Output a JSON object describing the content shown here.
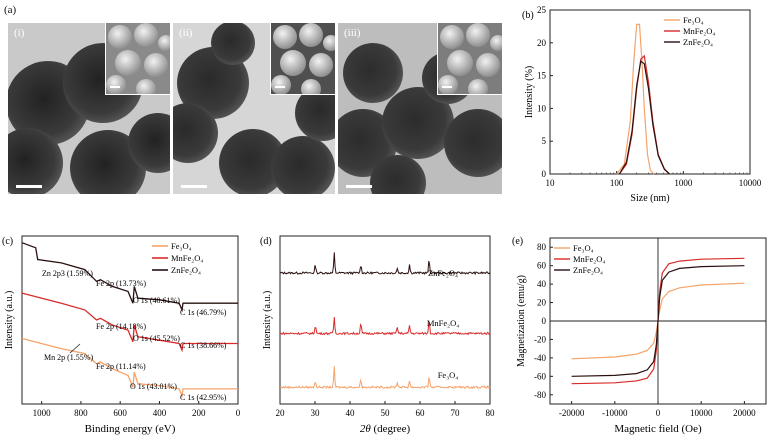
{
  "figure": {
    "panel_a_label": "(a)",
    "tem_panels": [
      {
        "label": "(i)",
        "bg": "#c9c9c9",
        "dark": "#222",
        "sem_bg": "#8a8a8a"
      },
      {
        "label": "(ii)",
        "bg": "#d6d6d6",
        "dark": "#2a2a2a",
        "sem_bg": "#4f4f4f"
      },
      {
        "label": "(iii)",
        "bg": "#bdbdbd",
        "dark": "#2c2c2c",
        "sem_bg": "#7d7d7d"
      }
    ]
  },
  "colors": {
    "fe3o4": "#f5a36a",
    "mnfe2o4": "#d92b2b",
    "znfe2o4": "#2a1010",
    "axis": "#222"
  },
  "chart_data": [
    {
      "id": "b",
      "panel_label": "(b)",
      "type": "line",
      "xscale": "log",
      "xlabel": "Size (nm)",
      "ylabel": "Intensity (%)",
      "xlim": [
        10,
        10000
      ],
      "ylim": [
        0,
        25
      ],
      "xticks": [
        10,
        100,
        1000,
        10000
      ],
      "xtick_labels": [
        "10",
        "100",
        "1000",
        "10000"
      ],
      "yticks": [
        0,
        5,
        10,
        15,
        20,
        25
      ],
      "legend": [
        "Fe₃O₄",
        "MnFe₂O₄",
        "ZnFe₂O₄"
      ],
      "series": [
        {
          "name": "Fe₃O₄",
          "x": [
            100,
            130,
            160,
            180,
            200,
            220,
            240,
            260,
            290,
            320,
            360
          ],
          "y": [
            0,
            1.5,
            8,
            17,
            22.8,
            22.8,
            17,
            10,
            3,
            0.6,
            0
          ]
        },
        {
          "name": "MnFe₂O₄",
          "x": [
            110,
            140,
            170,
            200,
            230,
            260,
            300,
            350,
            420,
            520,
            620
          ],
          "y": [
            0,
            1.5,
            6,
            13,
            17.5,
            18,
            14,
            8,
            3,
            0.8,
            0
          ]
        },
        {
          "name": "ZnFe₂O₄",
          "x": [
            110,
            140,
            170,
            200,
            230,
            260,
            300,
            350,
            420,
            520,
            620
          ],
          "y": [
            0,
            1.8,
            6.5,
            13.5,
            17.2,
            16.8,
            13,
            7.5,
            2.8,
            0.7,
            0
          ]
        }
      ]
    },
    {
      "id": "c",
      "panel_label": "(c)",
      "type": "line",
      "xlabel": "Binding energy (eV)",
      "ylabel": "Intensity (a.u.)",
      "xlim": [
        1100,
        0
      ],
      "xticks": [
        1000,
        800,
        600,
        400,
        200,
        0
      ],
      "legend": [
        "Fe₃O₄",
        "MnFe₂O₄",
        "ZnFe₂O₄"
      ],
      "annotations": [
        "Zn 2p3 (1.59%)",
        "Fe 2p (13.73%)",
        "O 1s (40.61%)",
        "C 1s (46.79%)",
        "Fe 2p (14.18%)",
        "O 1s (45.52%)",
        "C 1s (38.66%)",
        "Mn 2p (1.55%)",
        "Fe 2p (11.14%)",
        "O 1s (43.01%)",
        "C 1s (42.95%)"
      ],
      "series": [
        {
          "name": "ZnFe₂O₄",
          "x": [
            1100,
            1030,
            1020,
            900,
            780,
            720,
            700,
            640,
            560,
            535,
            528,
            510,
            400,
            300,
            285,
            280,
            200,
            100,
            0
          ],
          "y": [
            0.96,
            0.93,
            0.86,
            0.84,
            0.8,
            0.73,
            0.74,
            0.7,
            0.67,
            0.6,
            0.7,
            0.63,
            0.62,
            0.6,
            0.56,
            0.6,
            0.6,
            0.6,
            0.6
          ]
        },
        {
          "name": "MnFe₂O₄",
          "x": [
            1100,
            900,
            780,
            720,
            700,
            640,
            560,
            535,
            528,
            510,
            400,
            300,
            285,
            280,
            200,
            100,
            0
          ],
          "y": [
            0.66,
            0.6,
            0.56,
            0.5,
            0.51,
            0.47,
            0.44,
            0.37,
            0.47,
            0.4,
            0.38,
            0.36,
            0.32,
            0.36,
            0.36,
            0.36,
            0.36
          ]
        },
        {
          "name": "Fe₃O₄",
          "x": [
            1100,
            900,
            780,
            720,
            700,
            640,
            560,
            535,
            528,
            510,
            400,
            300,
            285,
            280,
            200,
            100,
            0
          ],
          "y": [
            0.39,
            0.33,
            0.3,
            0.24,
            0.25,
            0.21,
            0.17,
            0.1,
            0.19,
            0.12,
            0.11,
            0.09,
            0.05,
            0.09,
            0.09,
            0.09,
            0.09
          ]
        }
      ]
    },
    {
      "id": "d",
      "panel_label": "(d)",
      "type": "line",
      "xlabel": "2θ (degree)",
      "xlabel_symbol": "2θ",
      "xlabel_unit": " (degree)",
      "ylabel": "Intensity (a.u.)",
      "xlim": [
        20,
        80
      ],
      "xticks": [
        20,
        30,
        40,
        50,
        60,
        70,
        80
      ],
      "labels": [
        "ZnFe₂O₄",
        "MnFe₂O₄",
        "Fe₃O₄"
      ],
      "peaks": [
        30.1,
        35.5,
        43.1,
        53.5,
        57.0,
        62.6
      ],
      "series": [
        {
          "name": "ZnFe₂O₄",
          "baseline": 0.78,
          "heights": [
            0.05,
            0.12,
            0.05,
            0.03,
            0.05,
            0.08
          ]
        },
        {
          "name": "MnFe₂O₄",
          "baseline": 0.42,
          "heights": [
            0.05,
            0.1,
            0.06,
            0.04,
            0.05,
            0.08
          ]
        },
        {
          "name": "Fe₃O₄",
          "baseline": 0.1,
          "heights": [
            0.04,
            0.12,
            0.05,
            0.03,
            0.04,
            0.07
          ]
        }
      ]
    },
    {
      "id": "e",
      "panel_label": "(e)",
      "type": "line",
      "xlabel": "Magnetic field (Oe)",
      "ylabel": "Magnetization (emu/g)",
      "xlim": [
        -25000,
        25000
      ],
      "ylim": [
        -90,
        90
      ],
      "xticks": [
        -20000,
        -10000,
        0,
        10000,
        20000
      ],
      "yticks": [
        -80,
        -60,
        -40,
        -20,
        0,
        20,
        40,
        60,
        80
      ],
      "legend": [
        "Fe₃O₄",
        "MnFe₂O₄",
        "ZnFe₂O₄"
      ],
      "series": [
        {
          "name": "Fe₃O₄",
          "ms": 41,
          "x": [
            -20000,
            -10000,
            -5000,
            -2500,
            -1000,
            -400,
            0,
            400,
            1000,
            2500,
            5000,
            10000,
            20000
          ],
          "y": [
            -41,
            -39,
            -36,
            -32,
            -24,
            -12,
            0,
            12,
            24,
            32,
            36,
            39,
            41
          ]
        },
        {
          "name": "MnFe₂O₄",
          "ms": 68,
          "x": [
            -20000,
            -10000,
            -5000,
            -2500,
            -1000,
            -400,
            0,
            400,
            1000,
            2500,
            5000,
            10000,
            20000
          ],
          "y": [
            -68,
            -67,
            -65,
            -62,
            -52,
            -32,
            0,
            32,
            52,
            62,
            65,
            67,
            68
          ]
        },
        {
          "name": "ZnFe₂O₄",
          "ms": 60,
          "x": [
            -20000,
            -10000,
            -5000,
            -2500,
            -1000,
            -400,
            0,
            400,
            1000,
            2500,
            5000,
            10000,
            20000
          ],
          "y": [
            -60,
            -59,
            -57,
            -53,
            -44,
            -26,
            0,
            26,
            44,
            53,
            57,
            59,
            60
          ]
        }
      ]
    }
  ]
}
